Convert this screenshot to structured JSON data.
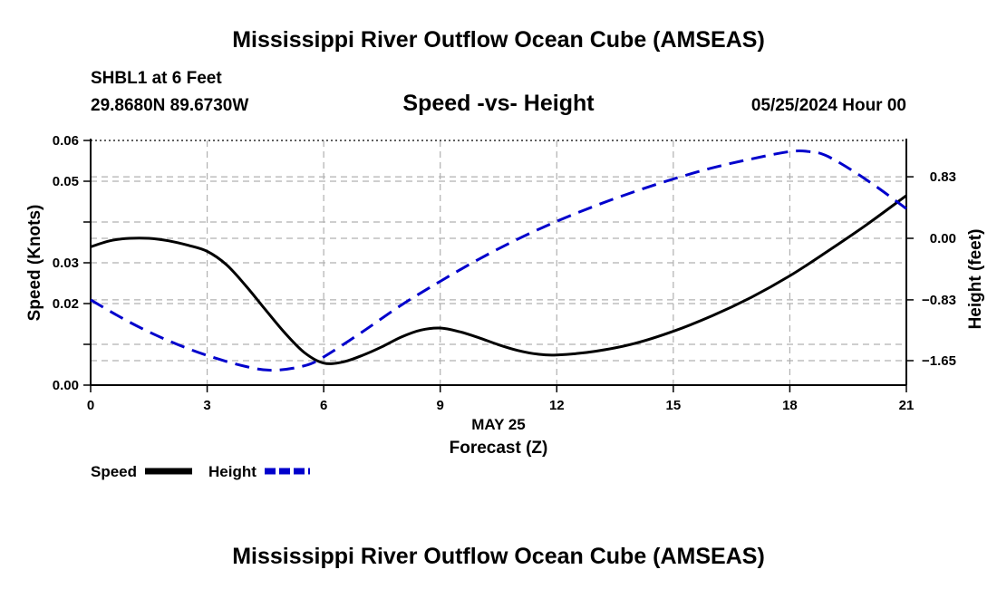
{
  "header": {
    "title": "Mississippi River Outflow Ocean Cube (AMSEAS)",
    "station": "SHBL1 at 6 Feet",
    "coords": "29.8680N  89.6730W",
    "subtitle": "Speed -vs- Height",
    "datetime": "05/25/2024 Hour 00"
  },
  "footer": {
    "title": "Mississippi River Outflow Ocean Cube (AMSEAS)"
  },
  "chart_data": {
    "type": "line",
    "title": "Speed -vs- Height",
    "xlabel": "Forecast (Z)",
    "xsublabel": "MAY 25",
    "ylabel": "Speed (Knots)",
    "y2label": "Height (feet)",
    "xlim": [
      0,
      21
    ],
    "ylim": [
      0,
      0.06
    ],
    "y2lim": [
      -1.98,
      1.32
    ],
    "x_ticks": [
      0,
      3,
      6,
      9,
      12,
      15,
      18,
      21
    ],
    "x_tick_labels": [
      "0",
      "3",
      "6",
      "9",
      "12",
      "15",
      "18",
      "21"
    ],
    "y_ticks": [
      0,
      0.01,
      0.02,
      0.03,
      0.04,
      0.05,
      0.06
    ],
    "y_tick_labels": [
      "0.00",
      "",
      "0.02",
      "0.03",
      "",
      "0.05",
      "0.06"
    ],
    "y2_ticks": [
      -1.65,
      -0.83,
      0.0,
      0.83
    ],
    "y2_tick_labels": [
      "−1.65",
      "−0.83",
      "0.00",
      "0.83"
    ],
    "grid": true,
    "colors": {
      "speed": "#000000",
      "height": "#0000cc",
      "grid": "#b0b0b0"
    },
    "series": [
      {
        "name": "Speed",
        "axis": "left",
        "style": "solid",
        "x": [
          0,
          0.5,
          1,
          1.5,
          2,
          2.5,
          3,
          3.5,
          4,
          4.5,
          5,
          5.5,
          6,
          6.5,
          7,
          7.5,
          8,
          8.5,
          9,
          9.5,
          10,
          10.5,
          11,
          11.5,
          12,
          13,
          14,
          15,
          16,
          17,
          18,
          19,
          20,
          21
        ],
        "values": [
          0.0339,
          0.0354,
          0.036,
          0.036,
          0.0354,
          0.0343,
          0.0328,
          0.0295,
          0.0243,
          0.0185,
          0.0128,
          0.008,
          0.0054,
          0.0057,
          0.0073,
          0.0094,
          0.0118,
          0.0135,
          0.014,
          0.0131,
          0.0116,
          0.0099,
          0.0085,
          0.0076,
          0.0074,
          0.0083,
          0.0102,
          0.0132,
          0.017,
          0.0215,
          0.0268,
          0.033,
          0.0395,
          0.0465
        ]
      },
      {
        "name": "Height",
        "axis": "right",
        "style": "dashed",
        "x": [
          0,
          1,
          2,
          3,
          4,
          4.7,
          5.5,
          6,
          7,
          8,
          9,
          10,
          11,
          12,
          13,
          14,
          15,
          16,
          17,
          18,
          18.5,
          19,
          20,
          21
        ],
        "values": [
          -0.83,
          -1.13,
          -1.38,
          -1.58,
          -1.73,
          -1.78,
          -1.72,
          -1.6,
          -1.26,
          -0.9,
          -0.58,
          -0.28,
          -0.01,
          0.23,
          0.44,
          0.63,
          0.8,
          0.95,
          1.07,
          1.17,
          1.17,
          1.1,
          0.78,
          0.4
        ]
      }
    ],
    "legend": [
      {
        "label": "Speed",
        "style": "solid"
      },
      {
        "label": "Height",
        "style": "dashed"
      }
    ]
  }
}
